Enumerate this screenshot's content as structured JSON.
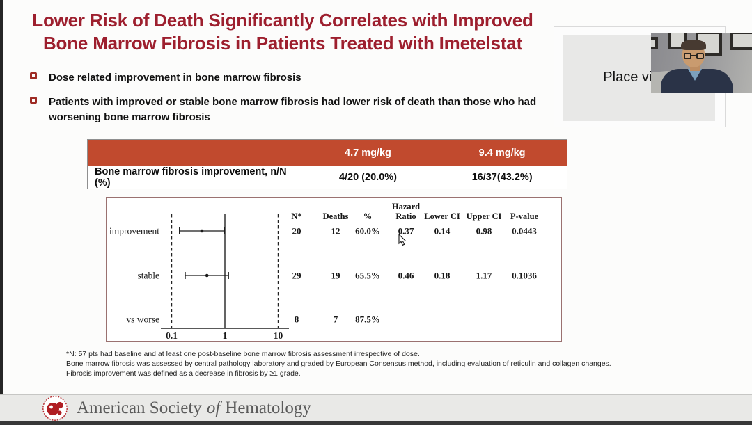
{
  "slide": {
    "title": {
      "line1": "Lower Risk of Death Significantly Correlates with Improved",
      "line2": "Bone Marrow Fibrosis in Patients Treated with Imetelstat"
    },
    "bullets": [
      "Dose related improvement in bone marrow fibrosis",
      "Patients with improved or stable bone marrow fibrosis had lower risk of death than those who had worsening bone marrow fibrosis"
    ],
    "dose_table": {
      "headers": [
        "",
        "4.7 mg/kg",
        "9.4 mg/kg"
      ],
      "rows": [
        [
          "Bone marrow fibrosis improvement, n/N (%)",
          "4/20 (20.0%)",
          "16/37(43.2%)"
        ]
      ]
    },
    "footnotes": [
      "*N: 57 pts had baseline and at least one post-baseline bone marrow fibrosis assessment irrespective of dose.",
      "Bone marrow fibrosis was assessed by central pathology laboratory and graded by European Consensus method, including evaluation of reticulin and collagen changes.",
      "Fibrosis improvement was defined as a decrease in fibrosis by ≥1 grade."
    ]
  },
  "chart_data": {
    "type": "scatter",
    "subtype": "forest-plot",
    "title": "",
    "xlabel": "",
    "ylabel": "",
    "x_scale": "log10",
    "x_ticks": [
      "0.1",
      "1",
      "10"
    ],
    "x_range": [
      0.07,
      13
    ],
    "grid": false,
    "reference_line_x": 1,
    "dashed_guide_lines_x": [
      0.1,
      10
    ],
    "columns": [
      "N*",
      "Deaths",
      "%",
      "Hazard\nRatio",
      "Lower CI",
      "Upper CI",
      "P-value"
    ],
    "rows": [
      {
        "label": "improvement",
        "hr": 0.37,
        "lower_ci": 0.14,
        "upper_ci": 0.98,
        "values": [
          "20",
          "12",
          "60.0%",
          "0.37",
          "0.14",
          "0.98",
          "0.0443"
        ]
      },
      {
        "label": "stable",
        "hr": 0.46,
        "lower_ci": 0.18,
        "upper_ci": 1.17,
        "values": [
          "29",
          "19",
          "65.5%",
          "0.46",
          "0.18",
          "1.17",
          "0.1036"
        ]
      },
      {
        "label": "vs worse",
        "hr": null,
        "lower_ci": null,
        "upper_ci": null,
        "values": [
          "8",
          "7",
          "87.5%",
          "",
          "",
          "",
          ""
        ]
      }
    ]
  },
  "video_call": {
    "placeholder_label": "Place video"
  },
  "footer": {
    "org_name_part1": "American Society",
    "org_name_part2": "of",
    "org_name_part3": "Hematology"
  },
  "colors": {
    "title_red": "#9d1f2e",
    "bullet_red": "#9e2b24",
    "table_header_bg": "#c14a2e",
    "panel_border": "#9a7170",
    "footer_text": "#5a5a5a",
    "logo_red": "#b01e23"
  }
}
